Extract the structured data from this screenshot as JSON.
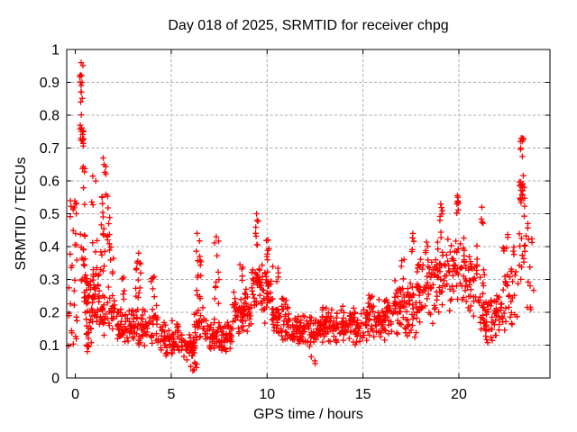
{
  "figure": {
    "background": "#ffffff",
    "border_color": "#000000",
    "text_color": "#000000"
  },
  "chart_data": {
    "type": "scatter",
    "title": "Day 018 of 2025, SRMTID for receiver chpg",
    "xlabel": "GPS time / hours",
    "ylabel": "SRMTID / TECUs",
    "xlim": [
      -0.45,
      24.75
    ],
    "ylim": [
      0,
      1
    ],
    "xticks": [
      0,
      5,
      10,
      15,
      20
    ],
    "xtick_labels": [
      "0",
      "5",
      "10",
      "15",
      "20"
    ],
    "yticks": [
      0,
      0.1,
      0.2,
      0.3,
      0.4,
      0.5,
      0.6,
      0.7,
      0.8,
      0.9,
      1
    ],
    "ytick_labels": [
      "0",
      "0.1",
      "0.2",
      "0.3",
      "0.4",
      "0.5",
      "0.6",
      "0.7",
      "0.8",
      "0.9",
      "1"
    ],
    "grid": {
      "show": true,
      "color": "#a8a8a8",
      "dash": [
        3,
        2.5
      ],
      "x_gridlines": [
        5,
        10,
        15,
        20
      ],
      "y_gridlines": [
        0.1,
        0.2,
        0.3,
        0.4,
        0.5,
        0.6,
        0.7,
        0.8,
        0.9
      ]
    },
    "legend": {
      "show": false
    },
    "marker": {
      "shape": "plus",
      "color": "#ff0000",
      "size": 7,
      "stroke_width": 1.3
    },
    "seed": 2025018,
    "clusters_format": "[x_start,x_end,y_min,y_max,count,bias] — density envelope read from the plot",
    "clusters": [
      [
        -0.35,
        0.1,
        0.28,
        0.55,
        16,
        "u"
      ],
      [
        -0.35,
        0.1,
        0.08,
        0.28,
        14,
        "u"
      ],
      [
        0.22,
        0.42,
        0.79,
        0.965,
        8,
        "u"
      ],
      [
        0.22,
        0.45,
        0.68,
        0.79,
        14,
        "mid"
      ],
      [
        0.25,
        0.5,
        0.38,
        0.68,
        10,
        "u"
      ],
      [
        0.3,
        0.6,
        0.27,
        0.4,
        12,
        "u"
      ],
      [
        0.45,
        0.8,
        0.18,
        0.33,
        25,
        "mid"
      ],
      [
        0.5,
        0.85,
        0.08,
        0.18,
        15,
        "u"
      ],
      [
        0.85,
        1.15,
        0.35,
        0.63,
        7,
        "u"
      ],
      [
        0.75,
        1.3,
        0.14,
        0.35,
        40,
        "mid"
      ],
      [
        1.35,
        1.75,
        0.5,
        0.68,
        9,
        "u"
      ],
      [
        1.35,
        1.8,
        0.38,
        0.52,
        14,
        "mid"
      ],
      [
        1.3,
        2.0,
        0.25,
        0.4,
        14,
        "u"
      ],
      [
        1.3,
        2.3,
        0.12,
        0.26,
        45,
        "mid"
      ],
      [
        2.2,
        3.1,
        0.09,
        0.22,
        55,
        "mid"
      ],
      [
        2.4,
        2.7,
        0.22,
        0.31,
        6,
        "u"
      ],
      [
        3.15,
        3.45,
        0.24,
        0.4,
        13,
        "u"
      ],
      [
        3.1,
        4.3,
        0.09,
        0.24,
        60,
        "mid"
      ],
      [
        3.95,
        4.15,
        0.24,
        0.31,
        6,
        "u"
      ],
      [
        4.3,
        5.5,
        0.06,
        0.18,
        70,
        "mid"
      ],
      [
        5.5,
        6.25,
        0.045,
        0.15,
        50,
        "mid"
      ],
      [
        5.95,
        6.4,
        0.022,
        0.05,
        6,
        "u"
      ],
      [
        6.25,
        6.6,
        0.24,
        0.445,
        14,
        "u"
      ],
      [
        6.2,
        6.8,
        0.09,
        0.24,
        28,
        "mid"
      ],
      [
        6.8,
        8.2,
        0.07,
        0.19,
        80,
        "mid"
      ],
      [
        7.25,
        7.5,
        0.21,
        0.43,
        10,
        "u"
      ],
      [
        8.2,
        9.2,
        0.12,
        0.29,
        65,
        "mid"
      ],
      [
        8.55,
        8.75,
        0.29,
        0.36,
        5,
        "u"
      ],
      [
        9.2,
        9.8,
        0.16,
        0.38,
        40,
        "mid"
      ],
      [
        9.4,
        9.55,
        0.4,
        0.505,
        6,
        "u"
      ],
      [
        9.8,
        10.3,
        0.16,
        0.36,
        35,
        "mid"
      ],
      [
        9.95,
        10.15,
        0.36,
        0.425,
        6,
        "u"
      ],
      [
        10.3,
        11.2,
        0.1,
        0.26,
        55,
        "mid"
      ],
      [
        10.45,
        10.6,
        0.28,
        0.335,
        4,
        "u"
      ],
      [
        11.2,
        12.8,
        0.08,
        0.21,
        95,
        "mid"
      ],
      [
        12.3,
        12.55,
        0.04,
        0.07,
        3,
        "u"
      ],
      [
        12.8,
        15.2,
        0.09,
        0.225,
        140,
        "mid"
      ],
      [
        15.2,
        16.6,
        0.11,
        0.26,
        85,
        "mid"
      ],
      [
        16.6,
        17.8,
        0.12,
        0.3,
        75,
        "mid"
      ],
      [
        16.95,
        17.15,
        0.3,
        0.375,
        4,
        "u"
      ],
      [
        17.55,
        17.7,
        0.38,
        0.44,
        4,
        "u"
      ],
      [
        17.8,
        18.7,
        0.15,
        0.38,
        55,
        "mid"
      ],
      [
        18.25,
        18.45,
        0.38,
        0.45,
        4,
        "u"
      ],
      [
        18.7,
        19.6,
        0.18,
        0.46,
        55,
        "mid"
      ],
      [
        19.0,
        19.15,
        0.46,
        0.53,
        5,
        "u"
      ],
      [
        19.6,
        20.3,
        0.2,
        0.5,
        42,
        "mid"
      ],
      [
        19.85,
        20.05,
        0.5,
        0.57,
        6,
        "u"
      ],
      [
        20.3,
        21.0,
        0.17,
        0.43,
        42,
        "mid"
      ],
      [
        21.05,
        21.35,
        0.12,
        0.36,
        22,
        "mid"
      ],
      [
        21.15,
        21.3,
        0.42,
        0.52,
        3,
        "u"
      ],
      [
        21.35,
        22.3,
        0.1,
        0.28,
        58,
        "mid"
      ],
      [
        22.3,
        22.6,
        0.14,
        0.45,
        18,
        "u"
      ],
      [
        22.6,
        23.1,
        0.15,
        0.4,
        22,
        "u"
      ],
      [
        23.15,
        23.45,
        0.5,
        0.635,
        18,
        "mid"
      ],
      [
        23.18,
        23.38,
        0.645,
        0.735,
        6,
        "u"
      ],
      [
        23.1,
        23.45,
        0.3,
        0.5,
        12,
        "u"
      ],
      [
        23.45,
        23.9,
        0.2,
        0.48,
        13,
        "u"
      ]
    ],
    "highlight_points": [
      [
        0.3,
        0.96
      ],
      [
        0.32,
        0.92
      ],
      [
        0.3,
        0.89
      ],
      [
        0.31,
        0.87
      ],
      [
        0.28,
        0.84
      ],
      [
        0.02,
        0.53
      ],
      [
        0.05,
        0.5
      ],
      [
        1.45,
        0.67
      ],
      [
        1.5,
        0.65
      ],
      [
        3.3,
        0.38
      ],
      [
        6.35,
        0.44
      ],
      [
        6.2,
        0.025
      ],
      [
        7.35,
        0.43
      ],
      [
        9.45,
        0.5
      ],
      [
        9.48,
        0.48
      ],
      [
        10.05,
        0.42
      ],
      [
        17.6,
        0.44
      ],
      [
        19.05,
        0.53
      ],
      [
        19.95,
        0.55
      ],
      [
        19.9,
        0.53
      ],
      [
        21.2,
        0.52
      ],
      [
        23.25,
        0.73
      ],
      [
        23.3,
        0.72
      ],
      [
        23.22,
        0.7
      ],
      [
        23.6,
        0.47
      ]
    ]
  }
}
